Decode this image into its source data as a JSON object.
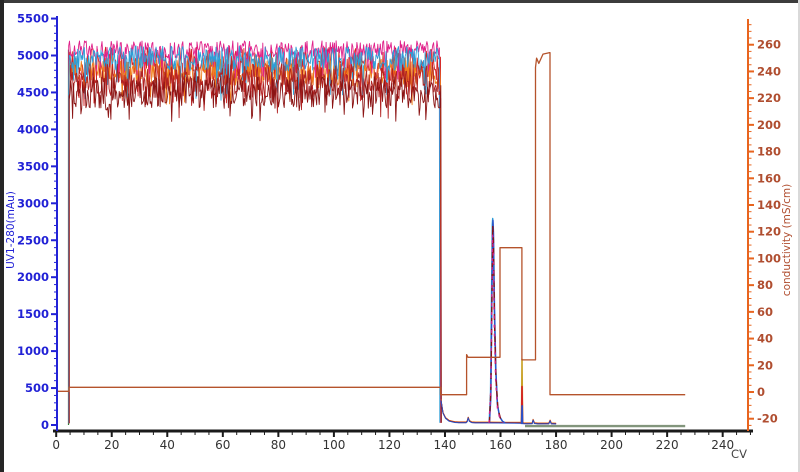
{
  "chart_data": {
    "type": "line",
    "title": "",
    "xlabel": "CV",
    "x_axis": {
      "ticks": [
        0,
        20,
        40,
        60,
        80,
        100,
        120,
        140,
        160,
        180,
        200,
        220,
        240
      ],
      "minor_step": 5,
      "range": [
        0,
        249
      ],
      "line_color": "#1a1a1a",
      "label_color": "#333333"
    },
    "left_axis": {
      "label": "UV1-280(mAu)",
      "unit": "mAu",
      "ticks": [
        0,
        500,
        1000,
        1500,
        2000,
        2500,
        3000,
        3500,
        4000,
        4500,
        5000,
        5500
      ],
      "minor_step": 100,
      "range": [
        0,
        5500
      ],
      "color": "#2222d6"
    },
    "right_axis": {
      "label": "conductivity (mS/cm)",
      "unit": "mS/cm",
      "ticks": [
        -20,
        0,
        20,
        40,
        60,
        80,
        100,
        120,
        140,
        160,
        180,
        200,
        220,
        240,
        260
      ],
      "minor_step": 5,
      "range": [
        -20,
        260
      ],
      "color": "#e8641e",
      "label_color": "#b04e30"
    },
    "saturated_uv_block": {
      "comment": "overlaid saturated UV runs, noisy band between ~4250 and ~5200 mAu from ~4.5 to ~138.5 CV",
      "x_start": 4.5,
      "x_end": 138.5,
      "series": [
        {
          "name": "run-red",
          "color": "#d42222",
          "base": 4880,
          "amp": 235,
          "clip": 5150,
          "dip_p": 0.08,
          "dip": 340,
          "start": 4.6,
          "end": 138.5
        },
        {
          "name": "run-orange",
          "color": "#ef7d1a",
          "base": 4770,
          "amp": 205,
          "clip": 5060,
          "dip_p": 0.05,
          "dip": 250,
          "start": 4.55,
          "end": 138.35
        },
        {
          "name": "run-magenta",
          "color": "#e0218a",
          "base": 5080,
          "amp": 120,
          "clip": 5200,
          "dip_p": 0.1,
          "dip": 300,
          "start": 4.5,
          "end": 138.25
        },
        {
          "name": "run-cyan",
          "color": "#2b9fd8",
          "base": 4960,
          "amp": 170,
          "clip": 5170,
          "dip_p": 0.08,
          "dip": 420,
          "start": 4.45,
          "end": 138.15
        },
        {
          "name": "run-firebrick",
          "color": "#b22222",
          "base": 4650,
          "amp": 240,
          "clip": 5050,
          "dip_p": 0.06,
          "dip": 280,
          "start": 4.65,
          "end": 138.6
        },
        {
          "name": "run-darkred",
          "color": "#8b1414",
          "base": 4500,
          "amp": 215,
          "clip": 4950,
          "dip_p": 0.1,
          "dip": 200,
          "start": 4.7,
          "end": 138.7
        }
      ]
    },
    "uv_baseline_points": [
      [
        139.3,
        160
      ],
      [
        140.2,
        90
      ],
      [
        141.5,
        52
      ],
      [
        143.5,
        34
      ],
      [
        145,
        30
      ],
      [
        147.6,
        30
      ],
      [
        148.0,
        45
      ],
      [
        148.35,
        95
      ],
      [
        148.8,
        50
      ],
      [
        149.6,
        32
      ],
      [
        151,
        28
      ],
      [
        155.5,
        28
      ],
      [
        162.5,
        26
      ],
      [
        167.3,
        24
      ],
      [
        168.4,
        18
      ],
      [
        169.5,
        16
      ],
      [
        171.4,
        18
      ],
      [
        171.75,
        65
      ],
      [
        172.2,
        20
      ],
      [
        173.5,
        15
      ],
      [
        177.4,
        16
      ],
      [
        177.85,
        55
      ],
      [
        178.3,
        16
      ],
      [
        180,
        14
      ]
    ],
    "uv_baseline_variants": [
      {
        "name": "baseline-orange",
        "color": "#ef7d1a",
        "offset": 12
      },
      {
        "name": "baseline-firebrick",
        "color": "#b22222",
        "offset": 6
      },
      {
        "name": "baseline-darkred",
        "color": "#8b1414",
        "offset": 2
      },
      {
        "name": "baseline-blue",
        "color": "#2a52c8",
        "offset": 0
      }
    ],
    "main_peak": {
      "apex_cv": 157.2,
      "apex_mau": 2780,
      "overlays": [
        {
          "name": "peak-cyan",
          "color": "#2b9fd8",
          "dash": "",
          "dx": 0,
          "apex": 2795,
          "pts": [
            [
              155.9,
              28
            ],
            [
              156.4,
              420
            ],
            [
              156.8,
              1900
            ],
            [
              157.05,
              2720
            ],
            [
              157.18,
              2795
            ],
            [
              157.35,
              2650
            ],
            [
              157.7,
              1700
            ],
            [
              158.2,
              800
            ],
            [
              158.8,
              300
            ],
            [
              159.6,
              120
            ],
            [
              160.6,
              55
            ],
            [
              161.5,
              32
            ]
          ]
        },
        {
          "name": "peak-blue",
          "color": "#2a52c8",
          "dash": "",
          "dx": 0.12,
          "apex": 2770,
          "pts": [
            [
              155.9,
              28
            ],
            [
              156.4,
              380
            ],
            [
              156.8,
              1800
            ],
            [
              157.05,
              2700
            ],
            [
              157.18,
              2770
            ],
            [
              157.35,
              2600
            ],
            [
              157.7,
              1600
            ],
            [
              158.2,
              740
            ],
            [
              158.8,
              270
            ],
            [
              159.6,
              110
            ],
            [
              160.6,
              50
            ],
            [
              161.5,
              30
            ]
          ]
        },
        {
          "name": "peak-darkred",
          "color": "#8b1414",
          "dash": "6 5",
          "dx": 0.05,
          "apex": 2700,
          "pts": [
            [
              155.95,
              28
            ],
            [
              156.5,
              500
            ],
            [
              156.9,
              1900
            ],
            [
              157.15,
              2700
            ],
            [
              157.4,
              2500
            ],
            [
              157.8,
              1400
            ],
            [
              158.3,
              650
            ],
            [
              159,
              220
            ],
            [
              160,
              80
            ],
            [
              161,
              35
            ]
          ]
        },
        {
          "name": "peak-magenta",
          "color": "#cc2288",
          "dash": "3 6",
          "dx": -0.05,
          "apex": 2580,
          "pts": [
            [
              155.95,
              28
            ],
            [
              156.5,
              450
            ],
            [
              156.9,
              1700
            ],
            [
              157.15,
              2580
            ],
            [
              157.4,
              2350
            ],
            [
              157.8,
              1300
            ],
            [
              158.3,
              600
            ],
            [
              159,
              200
            ],
            [
              160,
              70
            ],
            [
              161,
              32
            ]
          ]
        }
      ]
    },
    "narrow_spike": {
      "cv": 167.8,
      "overlays": [
        {
          "name": "spike-gold",
          "color": "#c9a227",
          "pts": [
            [
              167.55,
              20
            ],
            [
              167.75,
              890
            ],
            [
              167.95,
              20
            ]
          ]
        },
        {
          "name": "spike-red",
          "color": "#d42222",
          "pts": [
            [
              167.55,
              15
            ],
            [
              167.75,
              520
            ],
            [
              167.95,
              15
            ]
          ]
        },
        {
          "name": "spike-blue",
          "color": "#2a52c8",
          "pts": [
            [
              167.6,
              12
            ],
            [
              167.78,
              260
            ],
            [
              167.9,
              12
            ]
          ]
        }
      ]
    },
    "green_trace": {
      "name": "flat-green-trace",
      "color": "#82957c",
      "value_mau": -15,
      "points": [
        [
          168.8,
          -15
        ],
        [
          226.5,
          -15
        ]
      ]
    },
    "green_start_edge": {
      "cv": 4.42,
      "top": 5080,
      "color": "#2e7d32"
    },
    "conductivity_trace": {
      "name": "conductivity",
      "color": "#b5532b",
      "unit": "mS/cm",
      "points": [
        [
          0,
          0.5
        ],
        [
          4.6,
          0.5
        ],
        [
          4.6,
          3.5
        ],
        [
          138.4,
          3.5
        ],
        [
          138.4,
          -2
        ],
        [
          147.8,
          -2
        ],
        [
          147.8,
          28
        ],
        [
          148.3,
          26
        ],
        [
          159.8,
          26
        ],
        [
          159.8,
          108
        ],
        [
          167.7,
          108
        ],
        [
          167.7,
          24
        ],
        [
          172.6,
          24
        ],
        [
          172.6,
          243
        ],
        [
          173.0,
          250
        ],
        [
          173.8,
          246
        ],
        [
          175.3,
          253
        ],
        [
          177.5,
          254
        ],
        [
          177.8,
          254
        ],
        [
          177.8,
          -2
        ],
        [
          226.5,
          -2
        ]
      ]
    }
  }
}
